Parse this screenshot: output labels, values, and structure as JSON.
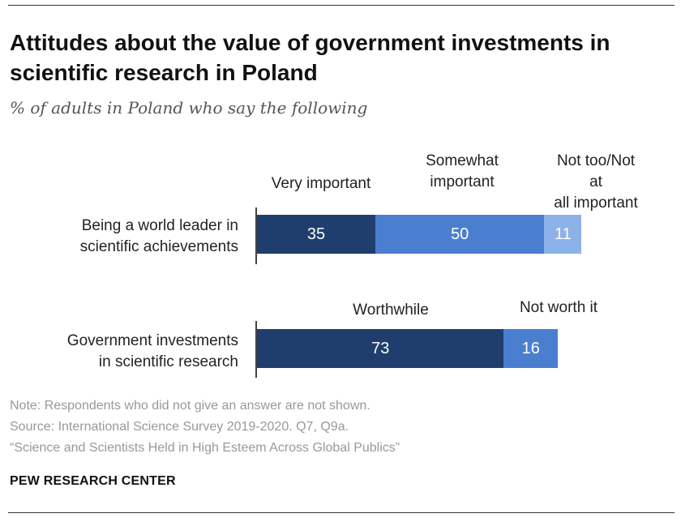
{
  "chart_data": [
    {
      "type": "bar",
      "orientation": "horizontal",
      "stacked": true,
      "title": "Attitudes about the value of government investments in scientific research in Poland",
      "subtitle": "% of adults in Poland who say the following",
      "categories": [
        "Being a world leader in\nscientific achievements"
      ],
      "series": [
        {
          "name": "Very important",
          "values": [
            35
          ],
          "color": "#1f3e6e"
        },
        {
          "name": "Somewhat\nimportant",
          "values": [
            50
          ],
          "color": "#4a7fd0"
        },
        {
          "name": "Not too/Not at\nall important",
          "values": [
            11
          ],
          "color": "#8db2ea"
        }
      ],
      "xlim": [
        0,
        100
      ]
    },
    {
      "type": "bar",
      "orientation": "horizontal",
      "stacked": true,
      "categories": [
        "Government investments\nin scientific research"
      ],
      "series": [
        {
          "name": "Worthwhile",
          "values": [
            73
          ],
          "color": "#1f3e6e"
        },
        {
          "name": "Not worth it",
          "values": [
            16
          ],
          "color": "#4a7fd0"
        }
      ],
      "xlim": [
        0,
        100
      ]
    }
  ],
  "notes": {
    "note": "Note: Respondents who did not give an answer are not shown.",
    "source": "Source: International Science Survey 2019-2020. Q7, Q9a.",
    "report": "“Science and Scientists Held in High Esteem Across Global Publics”"
  },
  "brand": "PEW RESEARCH CENTER"
}
